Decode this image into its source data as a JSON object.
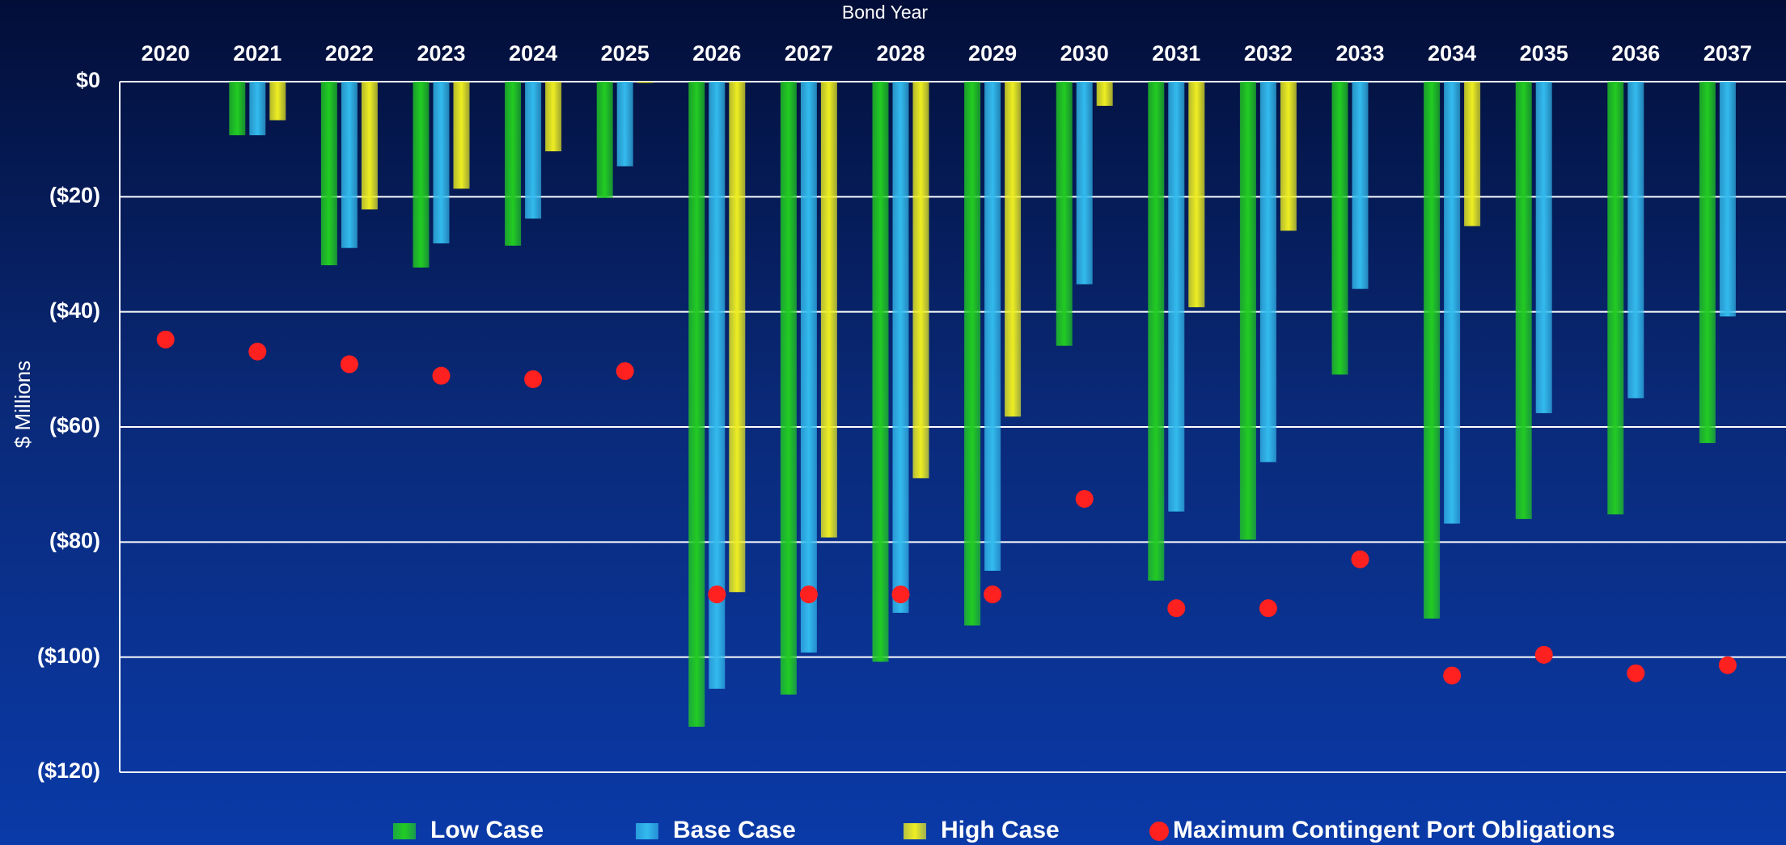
{
  "chart_data": {
    "type": "bar",
    "x_label": "Bond Year",
    "y_label": "$ Millions",
    "categories": [
      "2020",
      "2021",
      "2022",
      "2023",
      "2024",
      "2025",
      "2026",
      "2027",
      "2028",
      "2029",
      "2030",
      "2031",
      "2032",
      "2033",
      "2034",
      "2035",
      "2036",
      "2037"
    ],
    "series": [
      {
        "name": "Low Case",
        "color": "#22cc22",
        "values": [
          null,
          -9.3,
          -31.9,
          -32.3,
          -28.5,
          -20.2,
          -112.1,
          -106.5,
          -100.8,
          -94.5,
          -45.9,
          -86.7,
          -79.6,
          -50.9,
          -93.3,
          -76,
          -75.2,
          -62.8
        ]
      },
      {
        "name": "Base Case",
        "color": "#33bbee",
        "values": [
          null,
          -9.3,
          -28.9,
          -28.1,
          -23.8,
          -14.7,
          -105.5,
          -99.2,
          -92.3,
          -85,
          -35.2,
          -74.7,
          -66.1,
          -36,
          -76.8,
          -57.6,
          -55,
          -40.8
        ]
      },
      {
        "name": "High Case",
        "color": "#eeee22",
        "values": [
          null,
          -6.7,
          -22.2,
          -18.6,
          -12.1,
          -0.2,
          -88.7,
          -79.2,
          -68.9,
          -58.2,
          -4.2,
          -39.2,
          -25.9,
          null,
          -25.1,
          null,
          null,
          null
        ]
      },
      {
        "name": "Maximum Contingent Port Obligations",
        "color": "#ff2020",
        "type": "scatter",
        "values": [
          -44.8,
          -46.9,
          -49.1,
          -51.1,
          -51.7,
          -50.3,
          -89.1,
          -89.1,
          -89.1,
          -89.1,
          -72.5,
          -91.5,
          -91.5,
          -83,
          -103.2,
          -99.6,
          -102.8,
          -101.4
        ]
      }
    ],
    "ylim": [
      -120,
      0
    ],
    "yticks": [
      {
        "value": 0,
        "label": "$0"
      },
      {
        "value": -20,
        "label": "($20)"
      },
      {
        "value": -40,
        "label": "($40)"
      },
      {
        "value": -60,
        "label": "($60)"
      },
      {
        "value": -80,
        "label": "($80)"
      },
      {
        "value": -100,
        "label": "($100)"
      },
      {
        "value": -120,
        "label": "($120)"
      }
    ],
    "grid": true,
    "legend": "bottom"
  }
}
